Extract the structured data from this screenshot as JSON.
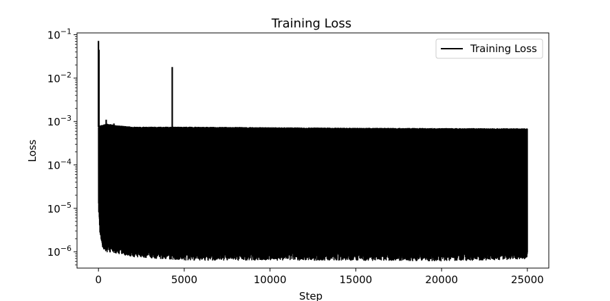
{
  "chart_data": {
    "type": "line",
    "title": "Training Loss",
    "xlabel": "Step",
    "ylabel": "Loss",
    "xscale": "linear",
    "yscale": "log",
    "xlim": [
      -1250,
      26250
    ],
    "ylim": [
      4.2e-07,
      0.11
    ],
    "xticks": [
      {
        "value": 0,
        "label": "0"
      },
      {
        "value": 5000,
        "label": "5000"
      },
      {
        "value": 10000,
        "label": "10000"
      },
      {
        "value": 15000,
        "label": "15000"
      },
      {
        "value": 20000,
        "label": "20000"
      },
      {
        "value": 25000,
        "label": "25000"
      }
    ],
    "yticks": [
      {
        "value": 1e-06,
        "base": "10",
        "exp": "−6"
      },
      {
        "value": 1e-05,
        "base": "10",
        "exp": "−5"
      },
      {
        "value": 0.0001,
        "base": "10",
        "exp": "−4"
      },
      {
        "value": 0.001,
        "base": "10",
        "exp": "−3"
      },
      {
        "value": 0.01,
        "base": "10",
        "exp": "−2"
      },
      {
        "value": 0.1,
        "base": "10",
        "exp": "−1"
      }
    ],
    "grid": false,
    "legend": {
      "position": "upper right",
      "entries": [
        "Training Loss"
      ]
    },
    "series": [
      {
        "name": "Training Loss",
        "color": "#000000",
        "x_range": [
          0,
          25000
        ],
        "band_upper": [
          [
            0,
            0.00075
          ],
          [
            500,
            0.00085
          ],
          [
            1000,
            0.00078
          ],
          [
            2000,
            0.00072
          ],
          [
            5000,
            0.00072
          ],
          [
            10000,
            0.0007
          ],
          [
            15000,
            0.00068
          ],
          [
            20000,
            0.00067
          ],
          [
            25000,
            0.00066
          ]
        ],
        "band_lower": [
          [
            0,
            1e-05
          ],
          [
            100,
            2.3e-06
          ],
          [
            300,
            1.2e-06
          ],
          [
            1000,
            1.1e-06
          ],
          [
            2000,
            9e-07
          ],
          [
            4000,
            8e-07
          ],
          [
            5000,
            7.5e-07
          ],
          [
            10000,
            7.5e-07
          ],
          [
            15000,
            7.5e-07
          ],
          [
            20000,
            7.2e-07
          ],
          [
            25000,
            8e-07
          ]
        ],
        "spikes": [
          {
            "x": 0,
            "y": 0.072
          },
          {
            "x": 30,
            "y": 0.045
          },
          {
            "x": 450,
            "y": 0.0011
          },
          {
            "x": 900,
            "y": 0.0009
          },
          {
            "x": 4300,
            "y": 0.018
          }
        ]
      }
    ]
  }
}
